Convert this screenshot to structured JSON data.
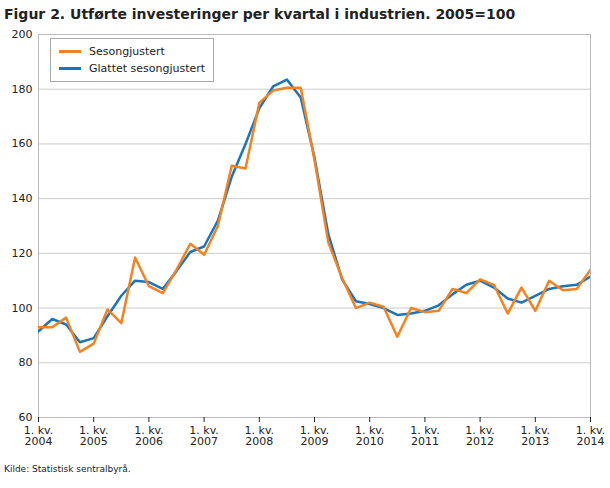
{
  "chart_data": {
    "type": "line",
    "title": "Figur 2. Utførte investeringer per kvartal i industrien. 2005=100",
    "source": "Kilde: Statistisk sentralbyrå.",
    "categories": [
      "1. kv.\n2004",
      null,
      null,
      null,
      "1. kv.\n2005",
      null,
      null,
      null,
      "1. kv.\n2006",
      null,
      null,
      null,
      "1. kv.\n2007",
      null,
      null,
      null,
      "1. kv.\n2008",
      null,
      null,
      null,
      "1. kv.\n2009",
      null,
      null,
      null,
      "1. kv.\n2010",
      null,
      null,
      null,
      "1. kv.\n2011",
      null,
      null,
      null,
      "1. kv.\n2012",
      null,
      null,
      null,
      "1. kv.\n2013",
      null,
      null,
      null,
      "1. kv.\n2014"
    ],
    "series": [
      {
        "name": "Sesongjustert",
        "color": "#f5821f",
        "values": [
          93,
          93,
          96.5,
          84,
          87,
          99.5,
          94.5,
          118.5,
          108,
          105.5,
          114,
          123.5,
          119.5,
          130,
          152,
          151,
          175,
          179.5,
          180.5,
          180.5,
          154,
          124,
          111,
          100,
          102,
          100.5,
          89.5,
          100,
          98.5,
          99,
          107,
          105.5,
          110.5,
          108.5,
          98,
          107.5,
          99,
          110,
          106.5,
          107,
          114
        ]
      },
      {
        "name": "Glattet sesongjustert",
        "color": "#1b75bc",
        "values": [
          91.5,
          96,
          94,
          87.5,
          89,
          97,
          104.5,
          110,
          109.5,
          107,
          113.5,
          120.5,
          122.5,
          132,
          148,
          160,
          173,
          181,
          183.5,
          177,
          155,
          127,
          110.5,
          102.5,
          101.5,
          100,
          97.5,
          98,
          99,
          101,
          105,
          108.5,
          110,
          107.5,
          103.5,
          102,
          104.5,
          107,
          108,
          108.5,
          111.5
        ]
      }
    ],
    "ylim": [
      60,
      200
    ],
    "yticks": [
      60,
      80,
      100,
      120,
      140,
      160,
      180,
      200
    ],
    "grid": true,
    "legend": "top-left"
  }
}
